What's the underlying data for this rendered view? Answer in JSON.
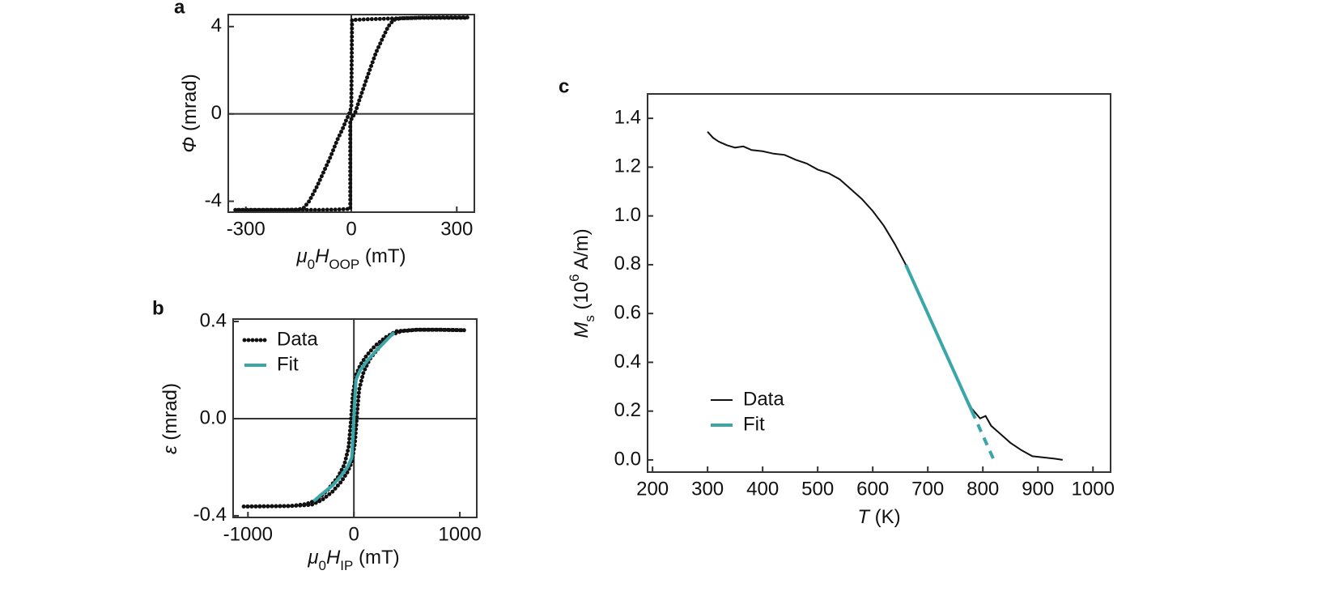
{
  "chart_data": [
    {
      "type": "line",
      "panel_label": "a",
      "x_label": [
        "μ",
        "0",
        "H",
        "OOP",
        " (mT)"
      ],
      "y_label": [
        "Φ",
        " (mrad)"
      ],
      "xlim": [
        -350,
        350
      ],
      "ylim": [
        -4.5,
        4.55
      ],
      "xticks": [
        -300,
        0,
        300
      ],
      "yticks": [
        -4,
        0,
        4
      ],
      "zero_lines": true,
      "series": [
        {
          "color": "#111111",
          "line_style": "dots",
          "x": [
            -330,
            -260,
            -200,
            -150,
            -135,
            -120,
            -100,
            -80,
            -60,
            -40,
            -25,
            -15,
            -6,
            0,
            2,
            40,
            100,
            200,
            330
          ],
          "values": [
            -4.4,
            -4.4,
            -4.4,
            -4.38,
            -4.3,
            -4.0,
            -3.4,
            -2.7,
            -2.0,
            -1.2,
            -0.7,
            -0.3,
            0.0,
            0.3,
            4.3,
            4.33,
            4.36,
            4.4,
            4.4
          ]
        },
        {
          "color": "#111111",
          "line_style": "dots",
          "x": [
            330,
            260,
            200,
            140,
            120,
            105,
            90,
            70,
            50,
            35,
            22,
            12,
            2,
            -3,
            -3,
            -40,
            -100,
            -200,
            -330
          ],
          "values": [
            4.42,
            4.42,
            4.41,
            4.38,
            4.3,
            4.0,
            3.5,
            2.8,
            1.9,
            1.2,
            0.6,
            0.1,
            -0.2,
            -0.3,
            -4.35,
            -4.38,
            -4.4,
            -4.4,
            -4.4
          ]
        }
      ]
    },
    {
      "type": "line",
      "panel_label": "b",
      "x_label": [
        "μ",
        "0",
        "H",
        "IP",
        " (mT)"
      ],
      "y_label": [
        "ε",
        " (mrad)"
      ],
      "xlim": [
        -1140,
        1160
      ],
      "ylim": [
        -0.407,
        0.41
      ],
      "xticks": [
        -1000,
        0,
        1000
      ],
      "yticks": [
        {
          "value": -0.4,
          "label": "-0.4"
        },
        {
          "value": 0,
          "label": "0.0"
        },
        {
          "value": 0.4,
          "label": "0.4"
        }
      ],
      "zero_lines": true,
      "legend": "upper left",
      "series": [
        {
          "name": "Data",
          "color": "#111111",
          "line_style": "dots",
          "x": [
            -1040,
            -800,
            -600,
            -450,
            -350,
            -250,
            -150,
            -90,
            -50,
            -30,
            -10,
            20,
            60,
            120,
            200,
            300,
            400,
            600,
            800,
            1040
          ],
          "values": [
            -0.362,
            -0.361,
            -0.36,
            -0.352,
            -0.335,
            -0.295,
            -0.24,
            -0.19,
            -0.12,
            -0.02,
            0.1,
            0.18,
            0.22,
            0.26,
            0.3,
            0.335,
            0.36,
            0.366,
            0.366,
            0.364
          ]
        },
        {
          "name": "Data",
          "color": "#111111",
          "line_style": "dots",
          "x": [
            1040,
            800,
            600,
            450,
            350,
            250,
            150,
            90,
            50,
            30,
            10,
            -20,
            -60,
            -120,
            -200,
            -300,
            -400,
            -600,
            -800,
            -1040
          ],
          "values": [
            0.364,
            0.366,
            0.366,
            0.36,
            0.345,
            0.3,
            0.245,
            0.19,
            0.12,
            0.02,
            -0.1,
            -0.18,
            -0.22,
            -0.26,
            -0.3,
            -0.335,
            -0.355,
            -0.36,
            -0.361,
            -0.362
          ]
        },
        {
          "name": "Fit",
          "color": "#3aa6a8",
          "line_style": "solid",
          "x": [
            -380,
            -300,
            -200,
            -120,
            -60,
            -20,
            -5,
            5,
            20,
            60,
            120,
            200,
            300,
            380
          ],
          "values": [
            -0.34,
            -0.31,
            -0.275,
            -0.235,
            -0.2,
            -0.16,
            -0.05,
            0.05,
            0.16,
            0.2,
            0.235,
            0.275,
            0.32,
            0.355
          ]
        }
      ]
    },
    {
      "type": "line",
      "panel_label": "c",
      "x_label": [
        "T",
        " (K)"
      ],
      "y_label": [
        "M",
        "s",
        " (10",
        "6",
        " A/m)"
      ],
      "xlim": [
        191,
        1032
      ],
      "ylim": [
        -0.05,
        1.5
      ],
      "xticks": [
        200,
        300,
        400,
        500,
        600,
        700,
        800,
        900,
        1000
      ],
      "yticks": [
        {
          "value": 0,
          "label": "0.0"
        },
        0.2,
        0.4,
        0.6,
        0.8,
        {
          "value": 1,
          "label": "1.0"
        },
        1.2,
        1.4
      ],
      "legend": "lower left",
      "series": [
        {
          "name": "Data",
          "color": "#111111",
          "line_style": "solid",
          "x": [
            300,
            310,
            320,
            335,
            350,
            365,
            380,
            400,
            420,
            440,
            460,
            480,
            500,
            520,
            540,
            560,
            580,
            600,
            620,
            640,
            660,
            680,
            700,
            720,
            740,
            760,
            780,
            795,
            805,
            815,
            830,
            850,
            870,
            890,
            910,
            930,
            945
          ],
          "values": [
            1.345,
            1.32,
            1.305,
            1.29,
            1.28,
            1.285,
            1.27,
            1.265,
            1.255,
            1.25,
            1.23,
            1.215,
            1.19,
            1.175,
            1.15,
            1.11,
            1.07,
            1.02,
            0.96,
            0.885,
            0.8,
            0.7,
            0.6,
            0.5,
            0.4,
            0.3,
            0.21,
            0.17,
            0.18,
            0.14,
            0.11,
            0.07,
            0.04,
            0.015,
            0.01,
            0.005,
            0.0
          ]
        },
        {
          "name": "Fit",
          "color": "#3aa6a8",
          "line_style": "solid",
          "dash_from": 780,
          "x": [
            660,
            700,
            740,
            780,
            800,
            820
          ],
          "values": [
            0.8,
            0.6,
            0.4,
            0.2,
            0.1,
            0.0
          ]
        }
      ]
    }
  ]
}
